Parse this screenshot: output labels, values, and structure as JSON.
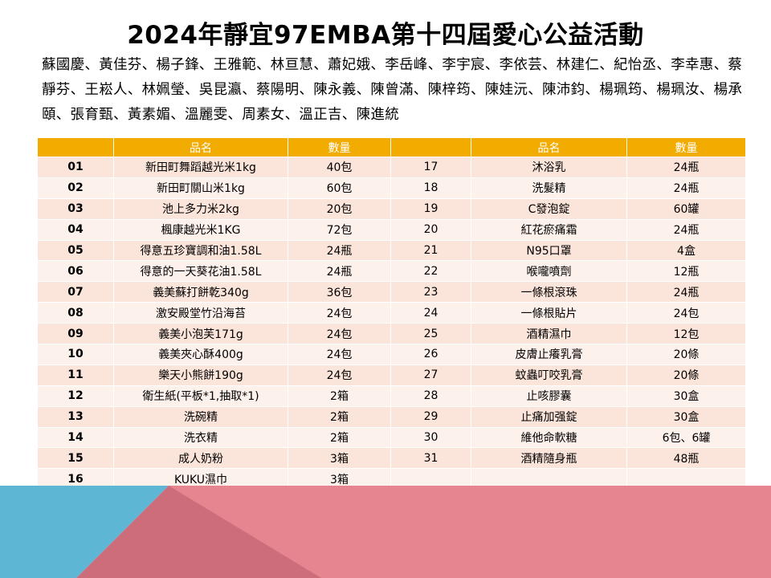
{
  "title": "2024年靜宜97EMBA第十四屆愛心公益活動",
  "names": "蘇國慶、黃佳芬、楊子鋒、王雅範、林亘慧、蕭妃娥、李岳峰、李宇宸、李依芸、林建仁、紀怡丞、李幸惠、蔡靜芬、王崧人、林姵瑩、吳昆瀛、蔡陽明、陳永義、陳曾滿、陳梓筠、陳娃沅、陳沛鈞、楊珮筠、楊珮汝、楊承頤、張育甄、黃素媚、溫麗雯、周素女、溫正吉、陳進統",
  "headers": {
    "no": "",
    "item": "品名",
    "qty": "數量"
  },
  "left_rows": [
    {
      "no": "01",
      "item": "新田町舞蹈越光米1kg",
      "qty": "40包"
    },
    {
      "no": "02",
      "item": "新田町關山米1kg",
      "qty": "60包"
    },
    {
      "no": "03",
      "item": "池上多力米2kg",
      "qty": "20包"
    },
    {
      "no": "04",
      "item": "楓康越光米1KG",
      "qty": "72包"
    },
    {
      "no": "05",
      "item": "得意五珍寶調和油1.58L",
      "qty": "24瓶"
    },
    {
      "no": "06",
      "item": "得意的一天葵花油1.58L",
      "qty": "24瓶"
    },
    {
      "no": "07",
      "item": "義美蘇打餅乾340g",
      "qty": "36包"
    },
    {
      "no": "08",
      "item": "激安殿堂竹沿海苔",
      "qty": "24包"
    },
    {
      "no": "09",
      "item": "義美小泡芙171g",
      "qty": "24包"
    },
    {
      "no": "10",
      "item": "義美夾心酥400g",
      "qty": "24包"
    },
    {
      "no": "11",
      "item": "樂天小熊餅190g",
      "qty": "24包"
    },
    {
      "no": "12",
      "item": "衛生紙(平板*1,抽取*1)",
      "qty": "2箱"
    },
    {
      "no": "13",
      "item": "洗碗精",
      "qty": "2箱"
    },
    {
      "no": "14",
      "item": "洗衣精",
      "qty": "2箱"
    },
    {
      "no": "15",
      "item": "成人奶粉",
      "qty": "3箱"
    },
    {
      "no": "16",
      "item": "KUKU濕巾",
      "qty": "3箱"
    }
  ],
  "right_rows": [
    {
      "no": "17",
      "item": "沐浴乳",
      "qty": "24瓶"
    },
    {
      "no": "18",
      "item": "洗髮精",
      "qty": "24瓶"
    },
    {
      "no": "19",
      "item": "C發泡錠",
      "qty": "60罐"
    },
    {
      "no": "20",
      "item": "紅花瘀痛霜",
      "qty": "24瓶"
    },
    {
      "no": "21",
      "item": "N95口罩",
      "qty": "4盒"
    },
    {
      "no": "22",
      "item": "喉嚨噴劑",
      "qty": "12瓶"
    },
    {
      "no": "23",
      "item": "一條根滾珠",
      "qty": "24瓶"
    },
    {
      "no": "24",
      "item": "一條根貼片",
      "qty": "24包"
    },
    {
      "no": "25",
      "item": "酒精濕巾",
      "qty": "12包"
    },
    {
      "no": "26",
      "item": "皮膚止癢乳膏",
      "qty": "20條"
    },
    {
      "no": "27",
      "item": "蚊蟲叮咬乳膏",
      "qty": "20條"
    },
    {
      "no": "28",
      "item": "止咳膠囊",
      "qty": "30盒"
    },
    {
      "no": "29",
      "item": "止痛加强錠",
      "qty": "30盒"
    },
    {
      "no": "30",
      "item": "維他命軟糖",
      "qty": "6包、6罐"
    },
    {
      "no": "31",
      "item": "酒精隨身瓶",
      "qty": "48瓶"
    },
    {
      "no": "",
      "item": "",
      "qty": ""
    }
  ],
  "colors": {
    "header": "#f2ac00",
    "row_odd": "#fbe4da",
    "row_even": "#fdf1ec",
    "accent_blue": "#5cb6d4",
    "accent_pink": "#e07f8d",
    "accent_dark": "#b05565"
  }
}
